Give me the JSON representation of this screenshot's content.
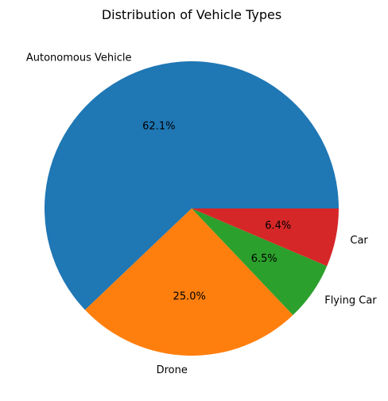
{
  "chart_data": {
    "type": "pie",
    "title": "Distribution of Vehicle Types",
    "slices": [
      {
        "label": "Autonomous Vehicle",
        "value": 62.1,
        "pct_label": "62.1%",
        "color": "#1f77b4"
      },
      {
        "label": "Drone",
        "value": 25.0,
        "pct_label": "25.0%",
        "color": "#ff7f0e"
      },
      {
        "label": "Flying Car",
        "value": 6.5,
        "pct_label": "6.5%",
        "color": "#2ca02c"
      },
      {
        "label": "Car",
        "value": 6.4,
        "pct_label": "6.4%",
        "color": "#d62728"
      }
    ],
    "start_angle": 0,
    "direction": "counterclockwise",
    "legend": "none"
  }
}
